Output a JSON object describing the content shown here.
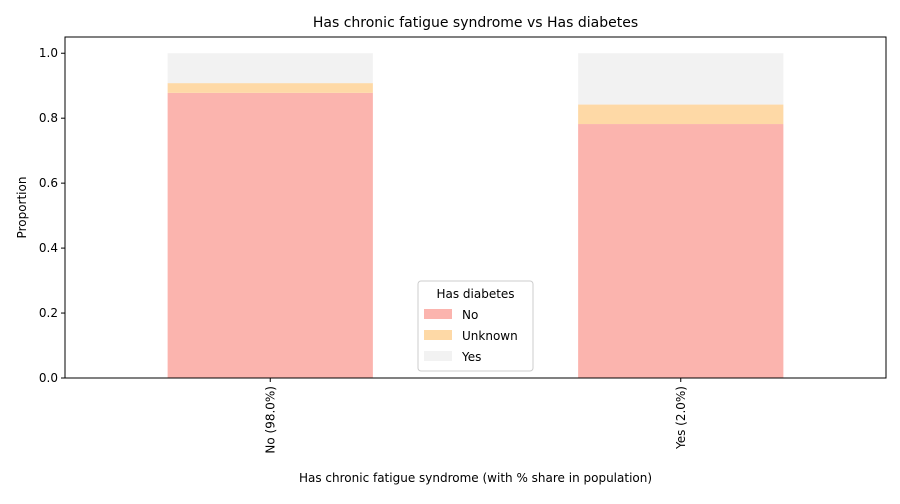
{
  "chart_data": {
    "type": "bar",
    "stacked": true,
    "title": "Has chronic fatigue syndrome vs Has diabetes",
    "xlabel": "Has chronic fatigue syndrome (with % share in population)",
    "ylabel": "Proportion",
    "categories": [
      "No (98.0%)",
      "Yes (2.0%)"
    ],
    "series": [
      {
        "name": "No",
        "values": [
          0.878,
          0.782
        ],
        "color": "#fbb4ae"
      },
      {
        "name": "Unknown",
        "values": [
          0.03,
          0.06
        ],
        "color": "#fed9a6"
      },
      {
        "name": "Yes",
        "values": [
          0.092,
          0.158
        ],
        "color": "#f2f2f2"
      }
    ],
    "ylim": [
      0,
      1.05
    ],
    "yticks": [
      "0.0",
      "0.2",
      "0.4",
      "0.6",
      "0.8",
      "1.0"
    ],
    "ytick_values": [
      0,
      0.2,
      0.4,
      0.6,
      0.8,
      1.0
    ],
    "legend": {
      "title": "Has diabetes",
      "placement": "lower-center"
    },
    "grid": false
  }
}
